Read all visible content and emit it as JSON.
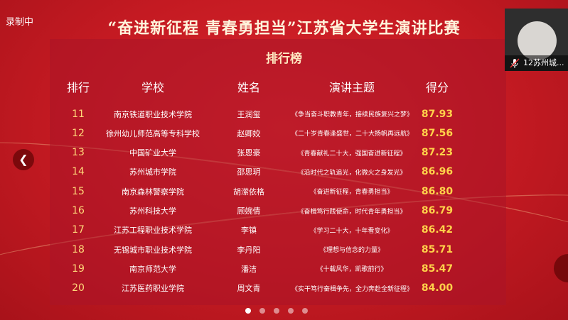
{
  "recording": "录制中",
  "title": "“奋进新征程 青春勇担当”江苏省大学生演讲比赛",
  "subtitle": "排行榜",
  "headers": [
    "排行",
    "学校",
    "姓名",
    "演讲主题",
    "得分"
  ],
  "rows": [
    {
      "rank": "11",
      "school": "南京铁道职业技术学院",
      "name": "王润玺",
      "topic": "《争当奋斗职教青年，接续民族复兴之梦》",
      "score": "87.93"
    },
    {
      "rank": "12",
      "school": "徐州幼儿师范高等专科学校",
      "name": "赵卿姣",
      "topic": "《二十岁青春逢盛世，二十大扬帆再远航》",
      "score": "87.56"
    },
    {
      "rank": "13",
      "school": "中国矿业大学",
      "name": "张恩豪",
      "topic": "《青春献礼二十大，强国奋进新征程》",
      "score": "87.23"
    },
    {
      "rank": "14",
      "school": "苏州城市学院",
      "name": "邵思玥",
      "topic": "《沿时代之轨追光，化微火之身发光》",
      "score": "86.96"
    },
    {
      "rank": "15",
      "school": "南京森林警察学院",
      "name": "胡潆依格",
      "topic": "《奋进新征程，青春勇担当》",
      "score": "86.80"
    },
    {
      "rank": "16",
      "school": "苏州科技大学",
      "name": "顾婉倩",
      "topic": "《奋楫笃行践使命，时代青年勇担当》",
      "score": "86.79"
    },
    {
      "rank": "17",
      "school": "江苏工程职业技术学院",
      "name": "李镇",
      "topic": "《学习二十大，十年看变化》",
      "score": "86.42"
    },
    {
      "rank": "18",
      "school": "无锡城市职业技术学院",
      "name": "李丹阳",
      "topic": "《理想与信念的力量》",
      "score": "85.71"
    },
    {
      "rank": "19",
      "school": "南京师范大学",
      "name": "潘洁",
      "topic": "《十载风华，凯歌前行》",
      "score": "85.47"
    },
    {
      "rank": "20",
      "school": "江苏医药职业学院",
      "name": "周文青",
      "topic": "《实干笃行奋楫争先，全力奔赴全新征程》",
      "score": "84.00"
    }
  ],
  "carousel": {
    "pages": 5,
    "active": 1
  },
  "participant": {
    "label": "12苏州城...",
    "mic": "muted"
  }
}
